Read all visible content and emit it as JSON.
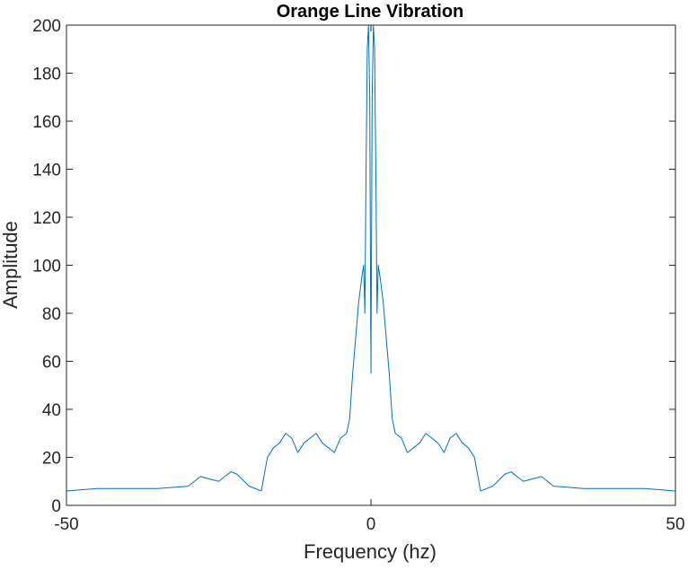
{
  "chart_data": {
    "type": "line",
    "title": "Orange Line Vibration",
    "xlabel": "Frequency (hz)",
    "ylabel": "Amplitude",
    "xlim": [
      -50,
      50
    ],
    "ylim": [
      0,
      200
    ],
    "xticks": [
      -50,
      0,
      50
    ],
    "yticks": [
      0,
      20,
      40,
      60,
      80,
      100,
      120,
      140,
      160,
      180,
      200
    ],
    "grid": false,
    "line_color": "#0072BD",
    "axis_color": "#262626",
    "series": [
      {
        "x": [
          -50,
          -45,
          -40,
          -35,
          -30,
          -28,
          -25,
          -23,
          -22,
          -20,
          -18,
          -17,
          -16,
          -15,
          -14,
          -13,
          -12,
          -11,
          -10,
          -9,
          -8,
          -7,
          -6,
          -5,
          -4,
          -3.5,
          -3,
          -2.5,
          -2,
          -1.5,
          -1.2,
          -1,
          -0.8,
          -0.6,
          -0.4,
          -0.2,
          0,
          0.2,
          0.4,
          0.6,
          0.8,
          1,
          1.2,
          1.5,
          2,
          2.5,
          3,
          3.5,
          4,
          5,
          6,
          7,
          8,
          9,
          10,
          11,
          12,
          13,
          14,
          15,
          16,
          17,
          18,
          20,
          22,
          23,
          25,
          28,
          30,
          35,
          40,
          45,
          50
        ],
        "y": [
          6,
          7,
          7,
          7,
          8,
          12,
          10,
          14,
          13,
          8,
          6,
          20,
          24,
          26,
          30,
          28,
          22,
          26,
          28,
          30,
          26,
          24,
          22,
          28,
          30,
          36,
          55,
          70,
          85,
          95,
          100,
          80,
          140,
          190,
          200,
          170,
          55,
          170,
          200,
          190,
          140,
          80,
          100,
          95,
          85,
          70,
          55,
          36,
          30,
          28,
          22,
          24,
          26,
          30,
          28,
          26,
          22,
          28,
          30,
          26,
          24,
          20,
          6,
          8,
          13,
          14,
          10,
          12,
          8,
          7,
          7,
          7,
          6
        ]
      }
    ]
  }
}
